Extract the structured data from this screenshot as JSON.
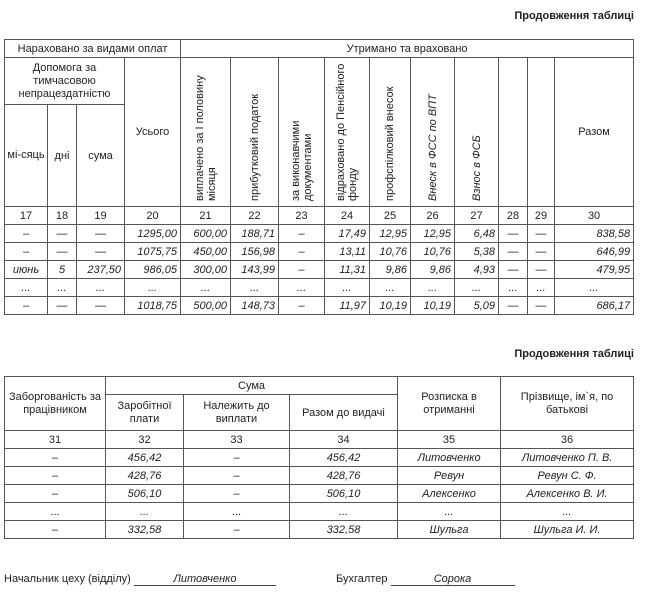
{
  "table1": {
    "caption": "Продовження таблиці",
    "group_accrued": "Нараховано за видами оплат",
    "group_withheld": "Утримано та враховано",
    "sick_group": "Допомога за тимчасовою непрацездатністю",
    "col_month": "мі-сяць",
    "col_days": "дні",
    "col_sum": "сума",
    "col_total": "Усього",
    "col_paid_first_half": "виплачено за І половину місяця",
    "col_income_tax": "прибутковий податок",
    "col_writs": "за виконавчими документами",
    "col_pension": "відраховано до Пенсійного фонду",
    "col_union": "профспілковий внесок",
    "col_fss_vtp": "Внеск в ФСС по ВПТ",
    "col_fsb": "Взнос в ФСБ",
    "col_result": "Разом",
    "numbers": [
      "17",
      "18",
      "19",
      "20",
      "21",
      "22",
      "23",
      "24",
      "25",
      "26",
      "27",
      "28",
      "29",
      "30"
    ],
    "rows": [
      [
        "–",
        "—",
        "—",
        "1295,00",
        "600,00",
        "188,71",
        "–",
        "17,49",
        "12,95",
        "12,95",
        "6,48",
        "—",
        "—",
        "838,58"
      ],
      [
        "–",
        "—",
        "—",
        "1075,75",
        "450,00",
        "156,98",
        "–",
        "13,11",
        "10,76",
        "10,76",
        "5,38",
        "—",
        "—",
        "646,99"
      ],
      [
        "июнь",
        "5",
        "237,50",
        "986,05",
        "300,00",
        "143,99",
        "–",
        "11,31",
        "9,86",
        "9,86",
        "4,93",
        "—",
        "—",
        "479,95"
      ],
      [
        "...",
        "...",
        "...",
        "...",
        "...",
        "...",
        "...",
        "...",
        "...",
        "...",
        "...",
        "...",
        "...",
        "..."
      ],
      [
        "–",
        "—",
        "—",
        "1018,75",
        "500,00",
        "148,73",
        "–",
        "11,97",
        "10,19",
        "10,19",
        "5,09",
        "—",
        "—",
        "686,17"
      ]
    ]
  },
  "table2": {
    "caption": "Продовження таблиці",
    "col_debt": "Заборгованість за працівником",
    "group_sum": "Сума",
    "col_earned": "Заробітної плати",
    "col_due": "Належить до виплати",
    "col_total_pay": "Разом до видачі",
    "col_signature": "Розписка в отриманні",
    "col_name": "Прізвище, ім`я, по батькові",
    "numbers": [
      "31",
      "32",
      "33",
      "34",
      "35",
      "36"
    ],
    "rows": [
      [
        "–",
        "456,42",
        "–",
        "456,42",
        "Литовченко",
        "Литовченко П. В."
      ],
      [
        "–",
        "428,76",
        "–",
        "428,76",
        "Ревун",
        "Ревун С. Ф."
      ],
      [
        "–",
        "506,10",
        "–",
        "506,10",
        "Алексенко",
        "Алексенко В. И."
      ],
      [
        "...",
        "...",
        "...",
        "...",
        "...",
        "..."
      ],
      [
        "–",
        "332,58",
        "–",
        "332,58",
        "Шульга",
        "Шульга И. И."
      ]
    ]
  },
  "footer": {
    "head_label": "Начальник цеху (відділу)",
    "head_name": "Литовченко",
    "accountant_label": "Бухгалтер",
    "accountant_name": "Сорока"
  }
}
